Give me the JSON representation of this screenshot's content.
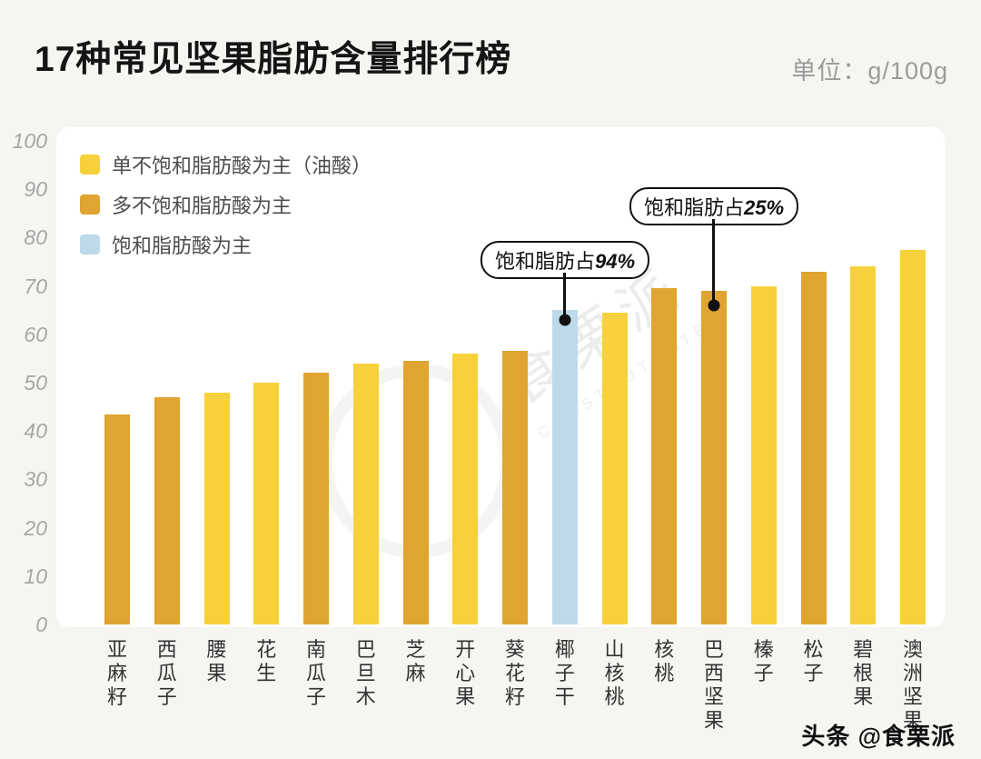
{
  "header": {
    "title": "17种常见坚果脂肪含量排行榜",
    "unit_label": "单位：g/100g"
  },
  "legend": [
    {
      "group": "mono",
      "label": "单不饱和脂肪酸为主（油酸）",
      "color": "#F7D13B"
    },
    {
      "group": "poly",
      "label": "多不饱和脂肪酸为主",
      "color": "#DFA431"
    },
    {
      "group": "sat",
      "label": "饱和脂肪酸为主",
      "color": "#BEDAEA"
    }
  ],
  "watermark": {
    "text": "食栗派",
    "subtext": "CHESTNUTMATES"
  },
  "footer": {
    "credit": "头条 @食栗派"
  },
  "chart_data": {
    "type": "bar",
    "title": "17种常见坚果脂肪含量排行榜",
    "ylabel": "g/100g",
    "ylim": [
      0,
      100
    ],
    "yticks": [
      0,
      10,
      20,
      30,
      40,
      50,
      60,
      70,
      80,
      90,
      100
    ],
    "grid": false,
    "legend_position": "top-left",
    "categories": [
      "亚麻籽",
      "西瓜子",
      "腰果",
      "花生",
      "南瓜子",
      "巴旦木",
      "芝麻",
      "开心果",
      "葵花籽",
      "椰子干",
      "山核桃",
      "核桃",
      "巴西坚果",
      "榛子",
      "松子",
      "碧根果",
      "澳洲坚果"
    ],
    "values": [
      43.5,
      47,
      48,
      50,
      52,
      54,
      54.5,
      56,
      56.5,
      65,
      64.5,
      69.5,
      69,
      70,
      73,
      74,
      77.5
    ],
    "groups": [
      "poly",
      "poly",
      "mono",
      "mono",
      "poly",
      "mono",
      "poly",
      "mono",
      "poly",
      "sat",
      "mono",
      "poly",
      "poly",
      "mono",
      "poly",
      "mono",
      "mono"
    ],
    "group_colors": {
      "mono": "#F7D13B",
      "poly": "#DFA431",
      "sat": "#BEDAEA"
    },
    "annotations": [
      {
        "prefix": "饱和脂肪占",
        "value": "94%",
        "category": "椰子干"
      },
      {
        "prefix": "饱和脂肪占",
        "value": "25%",
        "category": "巴西坚果"
      }
    ]
  }
}
